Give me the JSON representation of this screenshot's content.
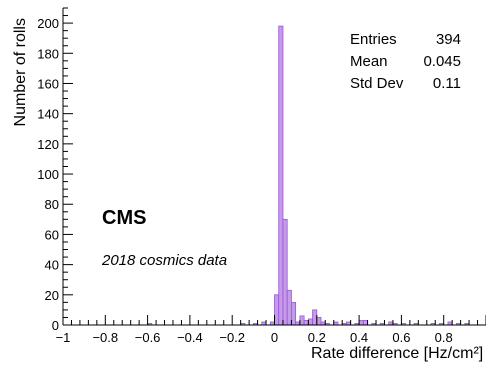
{
  "chart_data": {
    "type": "bar",
    "title": "",
    "xlabel": "Rate difference [Hz/cm²]",
    "ylabel": "Number of rolls",
    "xlim": [
      -1,
      1.0
    ],
    "ylim": [
      0,
      210
    ],
    "x_ticks": [
      -1,
      -0.8,
      -0.6,
      -0.4,
      -0.2,
      0,
      0.2,
      0.4,
      0.6,
      0.8
    ],
    "x_tick_labels": [
      "−1",
      "−0.8",
      "−0.6",
      "−0.4",
      "−0.2",
      "0",
      "0.2",
      "0.4",
      "0.6",
      "0.8"
    ],
    "y_ticks": [
      0,
      20,
      40,
      60,
      80,
      100,
      120,
      140,
      160,
      180,
      200
    ],
    "y_tick_labels": [
      "0",
      "20",
      "40",
      "60",
      "80",
      "100",
      "120",
      "140",
      "160",
      "180",
      "200"
    ],
    "bin_width": 0.02,
    "bins": [
      {
        "x": -0.6,
        "value": 1
      },
      {
        "x": -0.16,
        "value": 1
      },
      {
        "x": -0.1,
        "value": 1
      },
      {
        "x": -0.06,
        "value": 2
      },
      {
        "x": -0.02,
        "value": 2
      },
      {
        "x": 0.0,
        "value": 20
      },
      {
        "x": 0.02,
        "value": 198
      },
      {
        "x": 0.04,
        "value": 70
      },
      {
        "x": 0.06,
        "value": 23
      },
      {
        "x": 0.08,
        "value": 15
      },
      {
        "x": 0.1,
        "value": 2
      },
      {
        "x": 0.12,
        "value": 6
      },
      {
        "x": 0.14,
        "value": 3
      },
      {
        "x": 0.16,
        "value": 4
      },
      {
        "x": 0.18,
        "value": 10
      },
      {
        "x": 0.2,
        "value": 5
      },
      {
        "x": 0.22,
        "value": 2
      },
      {
        "x": 0.24,
        "value": 1
      },
      {
        "x": 0.28,
        "value": 2
      },
      {
        "x": 0.32,
        "value": 1
      },
      {
        "x": 0.34,
        "value": 2
      },
      {
        "x": 0.38,
        "value": 1
      },
      {
        "x": 0.4,
        "value": 3
      },
      {
        "x": 0.42,
        "value": 3
      },
      {
        "x": 0.46,
        "value": 1
      },
      {
        "x": 0.5,
        "value": 1
      },
      {
        "x": 0.54,
        "value": 2
      },
      {
        "x": 0.56,
        "value": 1
      },
      {
        "x": 0.6,
        "value": 1
      },
      {
        "x": 0.66,
        "value": 1
      },
      {
        "x": 0.74,
        "value": 1
      },
      {
        "x": 0.78,
        "value": 1
      },
      {
        "x": 0.82,
        "value": 2
      },
      {
        "x": 0.86,
        "value": 1
      },
      {
        "x": 0.9,
        "value": 1
      }
    ],
    "stats": [
      {
        "label": "Entries",
        "value": "394"
      },
      {
        "label": "Mean",
        "value": "0.045"
      },
      {
        "label": "Std Dev",
        "value": "0.11"
      }
    ],
    "annotations": {
      "experiment": "CMS",
      "dataset": "2018 cosmics data"
    },
    "colors": {
      "fill": "#c39be8",
      "stroke": "#9b55d6",
      "axis": "#000000"
    },
    "grid": false,
    "legend": "none"
  }
}
